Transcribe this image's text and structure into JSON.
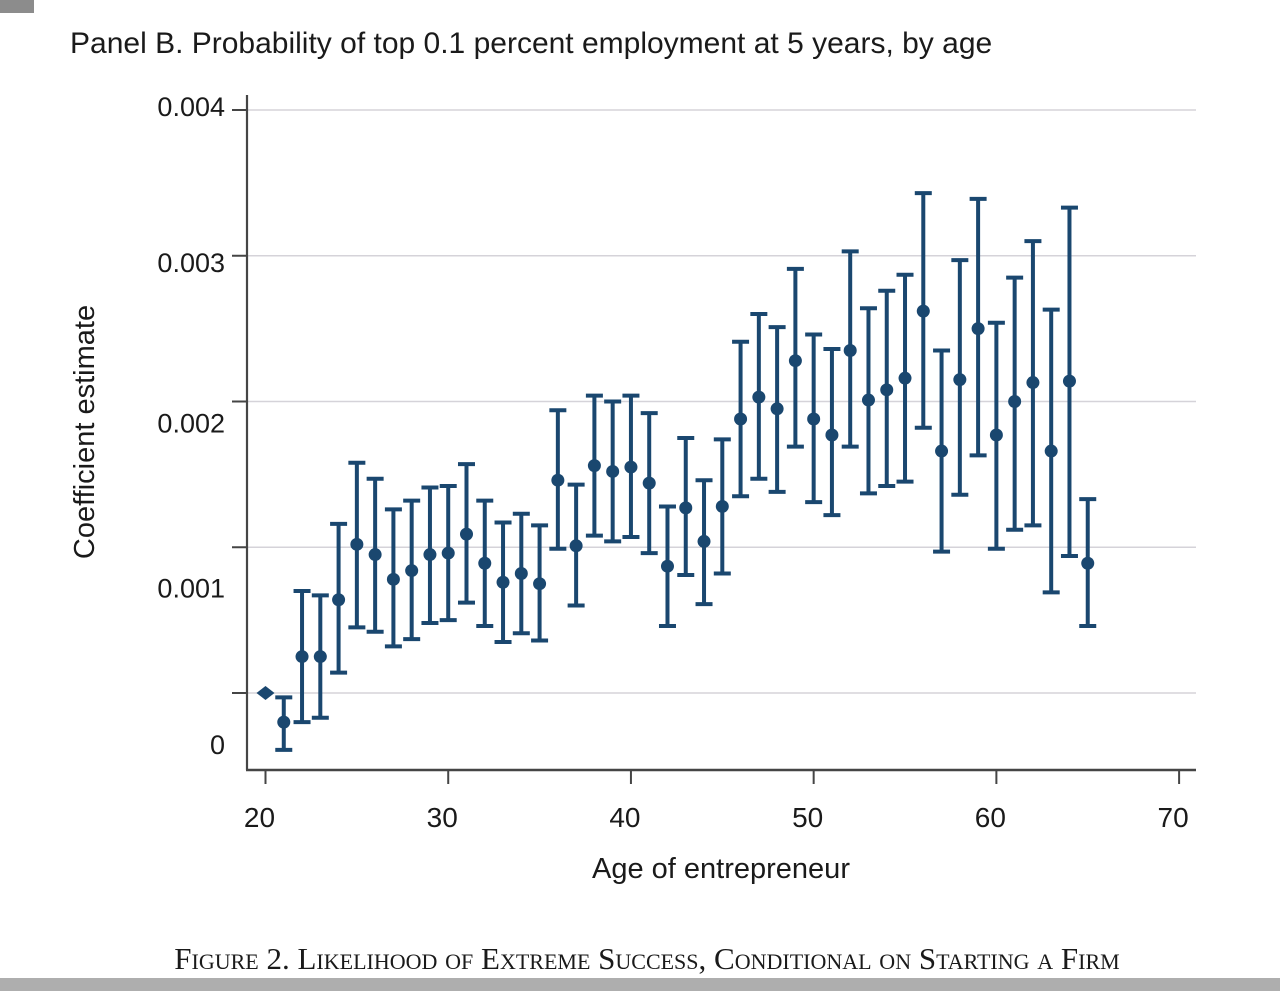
{
  "page": {
    "caption": "Figure 2. Likelihood of Extreme Success, Conditional on Starting a Firm"
  },
  "artifacts": {
    "top_left_bar_color": "#8c8c8c",
    "bottom_band_color": "#aeaeae"
  },
  "chart_data": {
    "type": "scatter",
    "subtype": "coefficient-plot-with-error-bars",
    "title": "Panel B. Probability of top 0.1 percent employment at 5 years, by age",
    "xlabel": "Age of entrepreneur",
    "ylabel": "Coefficient estimate",
    "xlim": [
      19,
      71
    ],
    "ylim": [
      -0.00053,
      0.0041
    ],
    "x_ticks": [
      20,
      30,
      40,
      50,
      60,
      70
    ],
    "y_ticks": [
      0,
      0.001,
      0.002,
      0.003,
      0.004
    ],
    "y_tick_labels": [
      "0",
      "0.001",
      "0.002",
      "0.003",
      "0.004"
    ],
    "grid": "horizontal",
    "legend": "none",
    "marker_color": "#1a476f",
    "gridline_color": "#d5d3d9",
    "axis_color": "#454545",
    "points": [
      {
        "age": 20,
        "estimate": 0.0,
        "ci_low": null,
        "ci_high": null,
        "marker": "diamond",
        "note": "reference category"
      },
      {
        "age": 21,
        "estimate": -0.0002,
        "ci_low": -0.00039,
        "ci_high": -3e-05,
        "marker": "circle"
      },
      {
        "age": 22,
        "estimate": 0.00025,
        "ci_low": -0.0002,
        "ci_high": 0.0007,
        "marker": "circle"
      },
      {
        "age": 23,
        "estimate": 0.00025,
        "ci_low": -0.00017,
        "ci_high": 0.00067,
        "marker": "circle"
      },
      {
        "age": 24,
        "estimate": 0.00064,
        "ci_low": 0.00014,
        "ci_high": 0.00116,
        "marker": "circle"
      },
      {
        "age": 25,
        "estimate": 0.00102,
        "ci_low": 0.00045,
        "ci_high": 0.00158,
        "marker": "circle"
      },
      {
        "age": 26,
        "estimate": 0.00095,
        "ci_low": 0.00042,
        "ci_high": 0.00147,
        "marker": "circle"
      },
      {
        "age": 27,
        "estimate": 0.00078,
        "ci_low": 0.00032,
        "ci_high": 0.00126,
        "marker": "circle"
      },
      {
        "age": 28,
        "estimate": 0.00084,
        "ci_low": 0.00037,
        "ci_high": 0.00132,
        "marker": "circle"
      },
      {
        "age": 29,
        "estimate": 0.00095,
        "ci_low": 0.00048,
        "ci_high": 0.00141,
        "marker": "circle"
      },
      {
        "age": 30,
        "estimate": 0.00096,
        "ci_low": 0.0005,
        "ci_high": 0.00142,
        "marker": "circle"
      },
      {
        "age": 31,
        "estimate": 0.00109,
        "ci_low": 0.00062,
        "ci_high": 0.00157,
        "marker": "circle"
      },
      {
        "age": 32,
        "estimate": 0.00089,
        "ci_low": 0.00046,
        "ci_high": 0.00132,
        "marker": "circle"
      },
      {
        "age": 33,
        "estimate": 0.00076,
        "ci_low": 0.00035,
        "ci_high": 0.00117,
        "marker": "circle"
      },
      {
        "age": 34,
        "estimate": 0.00082,
        "ci_low": 0.00041,
        "ci_high": 0.00123,
        "marker": "circle"
      },
      {
        "age": 35,
        "estimate": 0.00075,
        "ci_low": 0.00036,
        "ci_high": 0.00115,
        "marker": "circle"
      },
      {
        "age": 36,
        "estimate": 0.00146,
        "ci_low": 0.00099,
        "ci_high": 0.00194,
        "marker": "circle"
      },
      {
        "age": 37,
        "estimate": 0.00101,
        "ci_low": 0.0006,
        "ci_high": 0.00143,
        "marker": "circle"
      },
      {
        "age": 38,
        "estimate": 0.00156,
        "ci_low": 0.00108,
        "ci_high": 0.00204,
        "marker": "circle"
      },
      {
        "age": 39,
        "estimate": 0.00152,
        "ci_low": 0.00104,
        "ci_high": 0.002,
        "marker": "circle"
      },
      {
        "age": 40,
        "estimate": 0.00155,
        "ci_low": 0.00107,
        "ci_high": 0.00204,
        "marker": "circle"
      },
      {
        "age": 41,
        "estimate": 0.00144,
        "ci_low": 0.00096,
        "ci_high": 0.00192,
        "marker": "circle"
      },
      {
        "age": 42,
        "estimate": 0.00087,
        "ci_low": 0.00046,
        "ci_high": 0.00128,
        "marker": "circle"
      },
      {
        "age": 43,
        "estimate": 0.00127,
        "ci_low": 0.00081,
        "ci_high": 0.00175,
        "marker": "circle"
      },
      {
        "age": 44,
        "estimate": 0.00104,
        "ci_low": 0.00061,
        "ci_high": 0.00146,
        "marker": "circle"
      },
      {
        "age": 45,
        "estimate": 0.00128,
        "ci_low": 0.00082,
        "ci_high": 0.00174,
        "marker": "circle"
      },
      {
        "age": 46,
        "estimate": 0.00188,
        "ci_low": 0.00135,
        "ci_high": 0.00241,
        "marker": "circle"
      },
      {
        "age": 47,
        "estimate": 0.00203,
        "ci_low": 0.00147,
        "ci_high": 0.0026,
        "marker": "circle"
      },
      {
        "age": 48,
        "estimate": 0.00195,
        "ci_low": 0.00138,
        "ci_high": 0.00251,
        "marker": "circle"
      },
      {
        "age": 49,
        "estimate": 0.00228,
        "ci_low": 0.00169,
        "ci_high": 0.00291,
        "marker": "circle"
      },
      {
        "age": 50,
        "estimate": 0.00188,
        "ci_low": 0.00131,
        "ci_high": 0.00246,
        "marker": "circle"
      },
      {
        "age": 51,
        "estimate": 0.00177,
        "ci_low": 0.00122,
        "ci_high": 0.00236,
        "marker": "circle"
      },
      {
        "age": 52,
        "estimate": 0.00235,
        "ci_low": 0.00169,
        "ci_high": 0.00303,
        "marker": "circle"
      },
      {
        "age": 53,
        "estimate": 0.00201,
        "ci_low": 0.00137,
        "ci_high": 0.00264,
        "marker": "circle"
      },
      {
        "age": 54,
        "estimate": 0.00208,
        "ci_low": 0.00142,
        "ci_high": 0.00276,
        "marker": "circle"
      },
      {
        "age": 55,
        "estimate": 0.00216,
        "ci_low": 0.00145,
        "ci_high": 0.00287,
        "marker": "circle"
      },
      {
        "age": 56,
        "estimate": 0.00262,
        "ci_low": 0.00182,
        "ci_high": 0.00343,
        "marker": "circle"
      },
      {
        "age": 57,
        "estimate": 0.00166,
        "ci_low": 0.00097,
        "ci_high": 0.00235,
        "marker": "circle"
      },
      {
        "age": 58,
        "estimate": 0.00215,
        "ci_low": 0.00136,
        "ci_high": 0.00297,
        "marker": "circle"
      },
      {
        "age": 59,
        "estimate": 0.0025,
        "ci_low": 0.00163,
        "ci_high": 0.00339,
        "marker": "circle"
      },
      {
        "age": 60,
        "estimate": 0.00177,
        "ci_low": 0.00099,
        "ci_high": 0.00254,
        "marker": "circle"
      },
      {
        "age": 61,
        "estimate": 0.002,
        "ci_low": 0.00112,
        "ci_high": 0.00285,
        "marker": "circle"
      },
      {
        "age": 62,
        "estimate": 0.00213,
        "ci_low": 0.00115,
        "ci_high": 0.0031,
        "marker": "circle"
      },
      {
        "age": 63,
        "estimate": 0.00166,
        "ci_low": 0.00069,
        "ci_high": 0.00263,
        "marker": "circle"
      },
      {
        "age": 64,
        "estimate": 0.00214,
        "ci_low": 0.00094,
        "ci_high": 0.00333,
        "marker": "circle"
      },
      {
        "age": 65,
        "estimate": 0.00089,
        "ci_low": 0.00046,
        "ci_high": 0.00133,
        "marker": "circle"
      }
    ]
  }
}
